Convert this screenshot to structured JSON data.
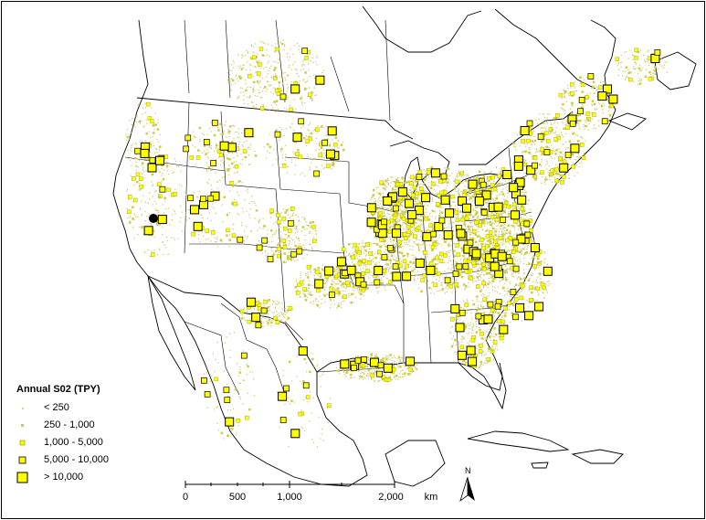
{
  "legend": {
    "title": "Annual S02 (TPY)",
    "classes": [
      {
        "label": "< 250",
        "icon": "tiny-dot"
      },
      {
        "label": "250 - 1,000",
        "icon": "small-square"
      },
      {
        "label": "1,000 - 5,000",
        "icon": "medium-square"
      },
      {
        "label": "5,000 - 10,000",
        "icon": "large-square"
      },
      {
        "label": "> 10,000",
        "icon": "xlarge-square"
      }
    ]
  },
  "scalebar": {
    "ticks": [
      "0",
      "500",
      "1,000",
      "2,000"
    ],
    "unit": "km"
  },
  "north_arrow": {
    "label": "N"
  },
  "colors": {
    "symbol_fill": "#ffff00",
    "symbol_stroke": "#000000",
    "tiny_dot": "#c8c864",
    "small_dot": "#cccc44",
    "boundary": "#000000",
    "site_marker": "#000000"
  }
}
